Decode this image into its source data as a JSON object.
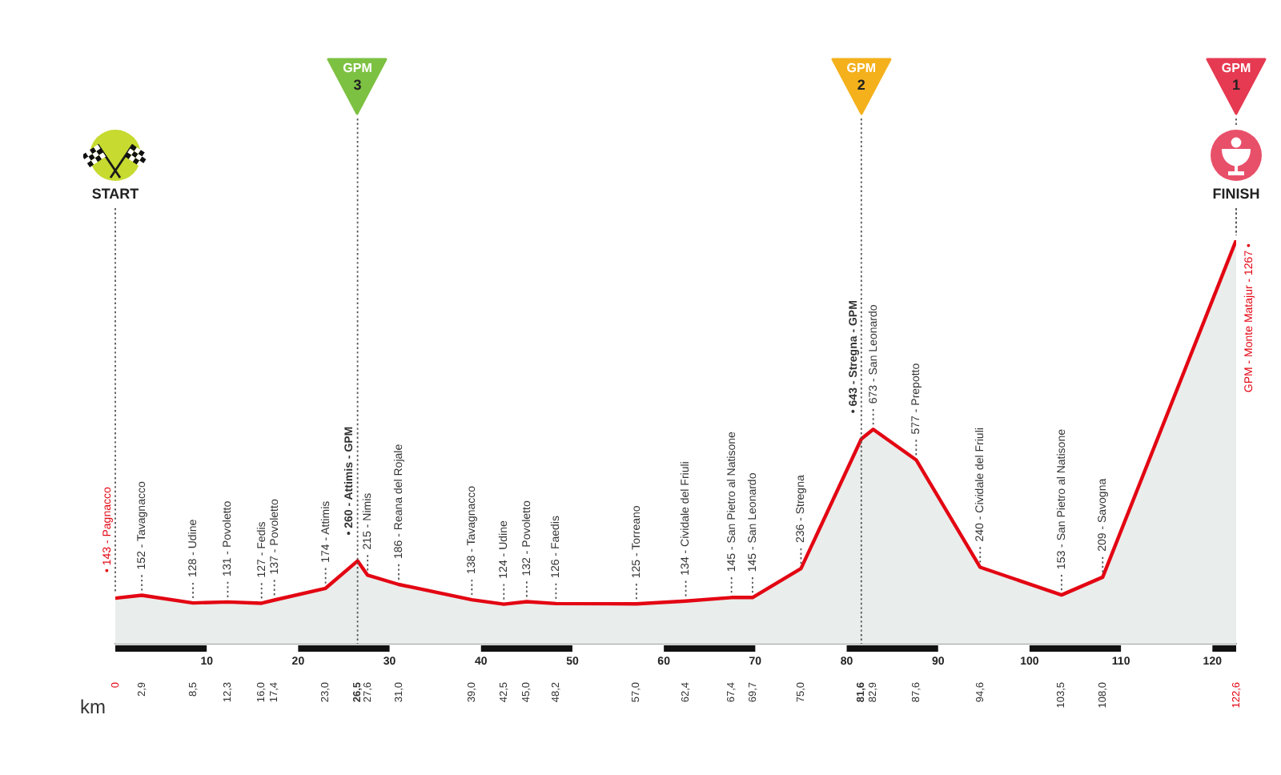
{
  "chart_data": {
    "type": "area",
    "color": "#e30613",
    "x": [
      0,
      2.9,
      8.5,
      12.3,
      16.0,
      17.4,
      23.0,
      26.5,
      27.6,
      31.0,
      39.0,
      42.5,
      45.0,
      48.2,
      57.0,
      62.4,
      67.4,
      69.7,
      75.0,
      81.6,
      82.9,
      87.6,
      94.6,
      103.5,
      108.0,
      122.6
    ],
    "values": [
      143,
      152,
      128,
      131,
      127,
      137,
      174,
      260,
      215,
      186,
      138,
      124,
      132,
      126,
      125,
      134,
      145,
      145,
      236,
      643,
      673,
      577,
      240,
      153,
      209,
      1267
    ],
    "value_labels": [
      "• 143 - Pagnacco",
      "152 - Tavagnacco",
      "128 - Udine",
      "131 - Povoletto",
      "127 - Fedis",
      "137 - Povoletto",
      "174 - Attimis",
      "• 260 - Attimis - GPM",
      "215 - Nimis",
      "186 - Reana del Rojale",
      "138 - Tavagnacco",
      "124 - Udine",
      "132 - Povoletto",
      "126 - Faedis",
      "125 - Torreano",
      "134 - Cividale del Friuli",
      "145 - San Pietro al Natisone",
      "145 - San Leonardo",
      "236 - Stregna",
      "• 643 - Stregna - GPM",
      "673 - San Leonardo",
      "577 - Prepotto",
      "240 - Cividale del Friuli",
      "153 - San Pietro al Natisone",
      "209 - Savogna",
      null
    ],
    "xlabel": "km",
    "xlim": [
      0,
      122.6
    ],
    "xticks": [
      0,
      {
        "value": 2.9,
        "label": "2,9"
      },
      {
        "value": 8.5,
        "label": "8,5"
      },
      {
        "value": 12.3,
        "label": "12,3"
      },
      {
        "value": 16.0,
        "label": "16,0"
      },
      {
        "value": 17.4,
        "label": "17,4"
      },
      {
        "value": 23.0,
        "label": "23,0"
      },
      {
        "value": 26.5,
        "label": "26,5"
      },
      {
        "value": 27.6,
        "label": "27,6"
      },
      {
        "value": 31.0,
        "label": "31,0"
      },
      {
        "value": 39.0,
        "label": "39,0"
      },
      {
        "value": 42.5,
        "label": "42,5"
      },
      {
        "value": 45.0,
        "label": "45,0"
      },
      {
        "value": 48.2,
        "label": "48,2"
      },
      {
        "value": 57.0,
        "label": "57,0"
      },
      {
        "value": 62.4,
        "label": "62,4"
      },
      {
        "value": 67.4,
        "label": "67,4"
      },
      {
        "value": 69.7,
        "label": "69,7"
      },
      {
        "value": 75.0,
        "label": "75,0"
      },
      {
        "value": 81.6,
        "label": "81,6"
      },
      {
        "value": 82.9,
        "label": "82,9"
      },
      {
        "value": 87.6,
        "label": "87,6"
      },
      {
        "value": 94.6,
        "label": "94,6"
      },
      {
        "value": 103.5,
        "label": "103,5"
      },
      {
        "value": 108.0,
        "label": "108,0"
      },
      {
        "value": 122.6,
        "label": "122,6"
      }
    ],
    "x2lim": [
      0,
      122.6
    ],
    "x2ticks": [
      10,
      20,
      30,
      40,
      50,
      60,
      70,
      80,
      90,
      100,
      110,
      120
    ],
    "tick_labels": "x",
    "ref_lines": [
      {
        "axis": "x",
        "value": 26.5,
        "label": "GPM\n3",
        "line_style": "dotted"
      },
      {
        "axis": "x",
        "value": 81.6,
        "label": "GPM\n2",
        "line_style": "dotted"
      }
    ],
    "annotations": [
      "START",
      "GPM\n1",
      {
        "text": "FINISH",
        "x": 122.6,
        "y": 1267
      },
      {
        "text": "GPM - Monte Matajur - 1267 •",
        "x": 122.6,
        "y": 1267
      }
    ]
  }
}
